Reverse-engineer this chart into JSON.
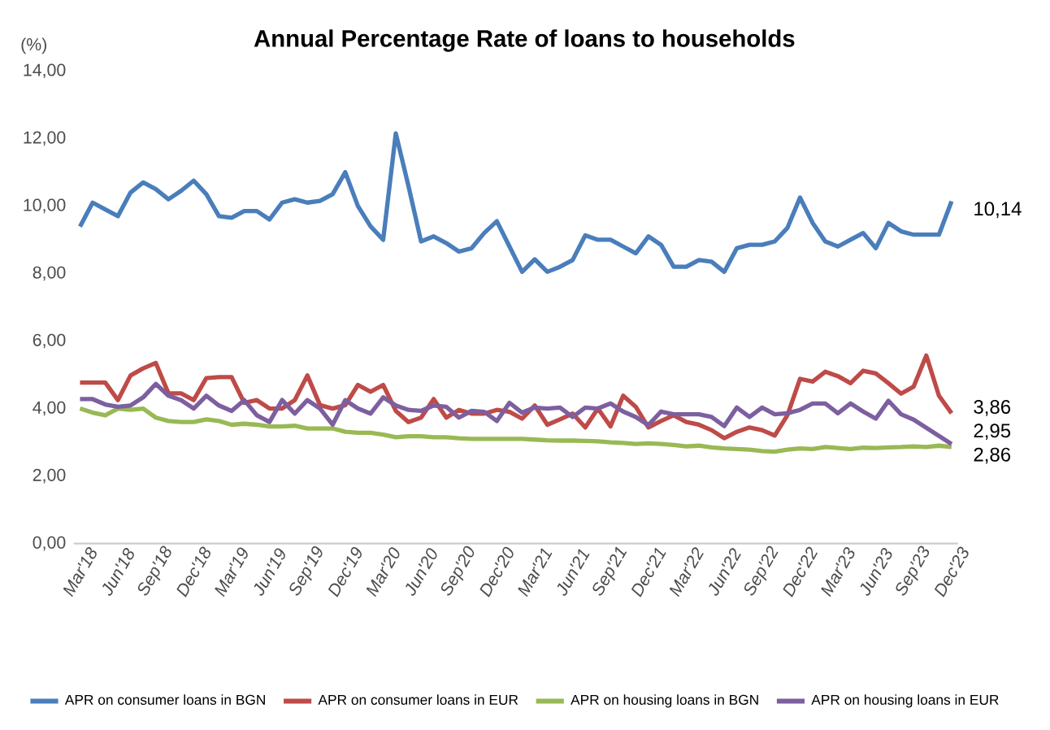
{
  "chart_data": {
    "type": "line",
    "title": "Annual Percentage Rate of loans to households",
    "ylabel": "(%)",
    "categories": [
      "Mar'18",
      null,
      null,
      "Jun'18",
      null,
      null,
      "Sep'18",
      null,
      null,
      "Dec'18",
      null,
      null,
      "Mar'19",
      null,
      null,
      "Jun'19",
      null,
      null,
      "Sep'19",
      null,
      null,
      "Dec'19",
      null,
      null,
      "Mar'20",
      null,
      null,
      "Jun'20",
      null,
      null,
      "Sep'20",
      null,
      null,
      "Dec'20",
      null,
      null,
      "Mar'21",
      null,
      null,
      "Jun'21",
      null,
      null,
      "Sep'21",
      null,
      null,
      "Dec'21",
      null,
      null,
      "Mar'22",
      null,
      null,
      "Jun'22",
      null,
      null,
      "Sep'22",
      null,
      null,
      "Dec'22",
      null,
      null,
      "Mar'23",
      null,
      null,
      "Jun'23",
      null,
      null,
      "Sep'23",
      null,
      null,
      "Dec'23"
    ],
    "series": [
      {
        "name": "APR on consumer loans in BGN",
        "color": "#4a7ebb",
        "values": [
          9.39,
          10.1,
          9.9,
          9.7,
          10.4,
          10.7,
          10.5,
          10.2,
          10.45,
          10.75,
          10.35,
          9.7,
          9.65,
          9.85,
          9.85,
          9.6,
          10.1,
          10.2,
          10.1,
          10.15,
          10.35,
          11.0,
          10.0,
          9.4,
          9.0,
          12.15,
          10.6,
          8.95,
          9.1,
          8.9,
          8.65,
          8.75,
          9.2,
          9.55,
          8.8,
          8.05,
          8.42,
          8.05,
          8.2,
          8.4,
          9.13,
          9.0,
          9.0,
          8.8,
          8.6,
          9.1,
          8.85,
          8.2,
          8.2,
          8.4,
          8.35,
          8.05,
          8.75,
          8.85,
          8.85,
          8.95,
          9.35,
          10.25,
          9.5,
          8.95,
          8.8,
          9.0,
          9.2,
          8.75,
          9.5,
          9.25,
          9.15,
          9.15,
          9.15,
          10.14
        ],
        "value_labels": [
          null,
          null,
          null,
          null,
          null,
          null,
          null,
          null,
          null,
          null,
          null,
          null,
          null,
          null,
          null,
          null,
          null,
          null,
          null,
          null,
          null,
          null,
          null,
          null,
          null,
          null,
          null,
          null,
          null,
          null,
          null,
          null,
          null,
          null,
          null,
          null,
          null,
          null,
          null,
          null,
          null,
          null,
          null,
          null,
          null,
          null,
          null,
          null,
          null,
          null,
          null,
          null,
          null,
          null,
          null,
          null,
          null,
          null,
          null,
          null,
          null,
          null,
          null,
          null,
          null,
          null,
          null,
          null,
          null,
          "10,14"
        ]
      },
      {
        "name": "APR on consumer loans in EUR",
        "color": "#be4b48",
        "values": [
          4.77,
          4.77,
          4.77,
          4.25,
          4.98,
          5.19,
          5.35,
          4.45,
          4.45,
          4.25,
          4.9,
          4.93,
          4.93,
          4.17,
          4.25,
          4.0,
          4.0,
          4.25,
          4.98,
          4.1,
          4.0,
          4.1,
          4.7,
          4.5,
          4.7,
          3.93,
          3.6,
          3.73,
          4.28,
          3.73,
          3.96,
          3.85,
          3.85,
          3.96,
          3.9,
          3.7,
          4.09,
          3.52,
          3.68,
          3.85,
          3.44,
          4.0,
          3.47,
          4.38,
          4.05,
          3.44,
          3.63,
          3.8,
          3.6,
          3.52,
          3.36,
          3.12,
          3.31,
          3.44,
          3.36,
          3.2,
          3.8,
          4.88,
          4.8,
          5.09,
          4.96,
          4.75,
          5.12,
          5.04,
          4.75,
          4.44,
          4.65,
          5.57,
          4.38,
          3.86
        ],
        "value_labels": [
          null,
          null,
          null,
          null,
          null,
          null,
          null,
          null,
          null,
          null,
          null,
          null,
          null,
          null,
          null,
          null,
          null,
          null,
          null,
          null,
          null,
          null,
          null,
          null,
          null,
          null,
          null,
          null,
          null,
          null,
          null,
          null,
          null,
          null,
          null,
          null,
          null,
          null,
          null,
          null,
          null,
          null,
          null,
          null,
          null,
          null,
          null,
          null,
          null,
          null,
          null,
          null,
          null,
          null,
          null,
          null,
          null,
          null,
          null,
          null,
          null,
          null,
          null,
          null,
          null,
          null,
          null,
          null,
          null,
          "3,86"
        ]
      },
      {
        "name": "APR on housing loans in BGN",
        "color": "#98b954",
        "values": [
          4.0,
          3.88,
          3.8,
          4.0,
          3.96,
          4.0,
          3.73,
          3.63,
          3.6,
          3.6,
          3.68,
          3.63,
          3.52,
          3.55,
          3.52,
          3.47,
          3.47,
          3.49,
          3.41,
          3.41,
          3.41,
          3.31,
          3.28,
          3.28,
          3.23,
          3.15,
          3.18,
          3.18,
          3.15,
          3.15,
          3.12,
          3.1,
          3.1,
          3.1,
          3.1,
          3.1,
          3.08,
          3.06,
          3.05,
          3.05,
          3.04,
          3.03,
          3.0,
          2.98,
          2.95,
          2.97,
          2.95,
          2.92,
          2.88,
          2.9,
          2.85,
          2.82,
          2.8,
          2.78,
          2.74,
          2.72,
          2.78,
          2.82,
          2.8,
          2.86,
          2.83,
          2.8,
          2.84,
          2.83,
          2.85,
          2.86,
          2.88,
          2.86,
          2.9,
          2.86
        ],
        "value_labels": [
          null,
          null,
          null,
          null,
          null,
          null,
          null,
          null,
          null,
          null,
          null,
          null,
          null,
          null,
          null,
          null,
          null,
          null,
          null,
          null,
          null,
          null,
          null,
          null,
          null,
          null,
          null,
          null,
          null,
          null,
          null,
          null,
          null,
          null,
          null,
          null,
          null,
          null,
          null,
          null,
          null,
          null,
          null,
          null,
          null,
          null,
          null,
          null,
          null,
          null,
          null,
          null,
          null,
          null,
          null,
          null,
          null,
          null,
          null,
          null,
          null,
          null,
          null,
          null,
          null,
          null,
          null,
          null,
          null,
          "2,86"
        ]
      },
      {
        "name": "APR on housing loans in EUR",
        "color": "#7d5fa0",
        "values": [
          4.28,
          4.28,
          4.12,
          4.05,
          4.09,
          4.33,
          4.73,
          4.38,
          4.25,
          4.0,
          4.38,
          4.09,
          3.93,
          4.25,
          3.8,
          3.6,
          4.25,
          3.85,
          4.25,
          4.0,
          3.52,
          4.25,
          4.0,
          3.85,
          4.33,
          4.09,
          3.96,
          3.93,
          4.09,
          4.05,
          3.73,
          3.93,
          3.9,
          3.63,
          4.17,
          3.88,
          4.03,
          4.0,
          4.03,
          3.75,
          4.03,
          4.0,
          4.15,
          3.91,
          3.75,
          3.51,
          3.91,
          3.83,
          3.83,
          3.83,
          3.75,
          3.48,
          4.03,
          3.75,
          4.03,
          3.83,
          3.86,
          3.96,
          4.15,
          4.15,
          3.86,
          4.15,
          3.91,
          3.7,
          4.23,
          3.83,
          3.67,
          3.43,
          3.19,
          2.95
        ],
        "value_labels": [
          null,
          null,
          null,
          null,
          null,
          null,
          null,
          null,
          null,
          null,
          null,
          null,
          null,
          null,
          null,
          null,
          null,
          null,
          null,
          null,
          null,
          null,
          null,
          null,
          null,
          null,
          null,
          null,
          null,
          null,
          null,
          null,
          null,
          null,
          null,
          null,
          null,
          null,
          null,
          null,
          null,
          null,
          null,
          null,
          null,
          null,
          null,
          null,
          null,
          null,
          null,
          null,
          null,
          null,
          null,
          null,
          null,
          null,
          null,
          null,
          null,
          null,
          null,
          null,
          null,
          null,
          null,
          null,
          null,
          "2,95"
        ]
      }
    ],
    "ylim": [
      0,
      14
    ],
    "yticks": [
      {
        "value": 0,
        "label": "0,00"
      },
      {
        "value": 2,
        "label": "2,00"
      },
      {
        "value": 4,
        "label": "4,00"
      },
      {
        "value": 6,
        "label": "6,00"
      },
      {
        "value": 8,
        "label": "8,00"
      },
      {
        "value": 10,
        "label": "10,00"
      },
      {
        "value": 12,
        "label": "12,00"
      },
      {
        "value": 14,
        "label": "14,00"
      }
    ],
    "legend": "bottom",
    "marker": "none",
    "line_style": "solid"
  }
}
